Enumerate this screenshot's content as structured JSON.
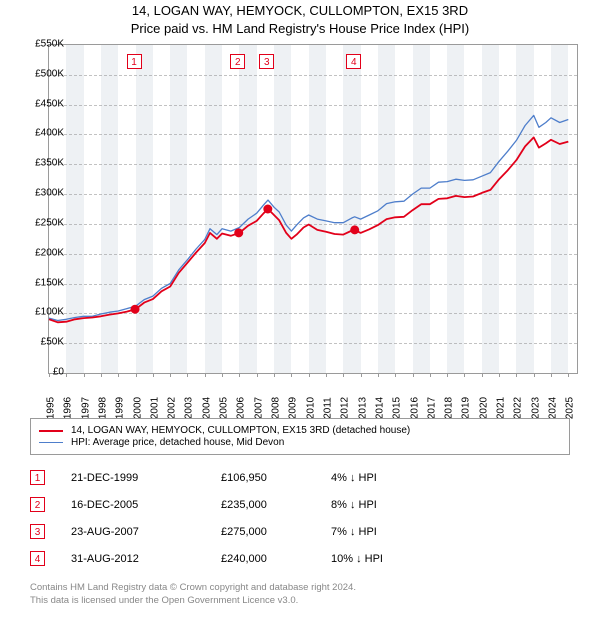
{
  "title_line1": "14, LOGAN WAY, HEMYOCK, CULLOMPTON, EX15 3RD",
  "title_line2": "Price paid vs. HM Land Registry's House Price Index (HPI)",
  "chart": {
    "type": "line",
    "background_color": "#ffffff",
    "band_color": "#eef1f4",
    "grid_color": "#999999",
    "border_color": "#9a9a9a",
    "x_min": 1995.0,
    "x_max": 2025.5,
    "ylim": [
      0,
      550000
    ],
    "ytick_step": 50000,
    "yticks": [
      "£0",
      "£50K",
      "£100K",
      "£150K",
      "£200K",
      "£250K",
      "£300K",
      "£350K",
      "£400K",
      "£450K",
      "£500K",
      "£550K"
    ],
    "xticks": [
      1995,
      1996,
      1997,
      1998,
      1999,
      2000,
      2001,
      2002,
      2003,
      2004,
      2005,
      2006,
      2007,
      2008,
      2009,
      2010,
      2011,
      2012,
      2013,
      2014,
      2015,
      2016,
      2017,
      2018,
      2019,
      2020,
      2021,
      2022,
      2023,
      2024,
      2025
    ],
    "xtick_labels": [
      "1995",
      "1996",
      "1997",
      "1998",
      "1999",
      "2000",
      "2001",
      "2002",
      "2003",
      "2004",
      "2005",
      "2006",
      "2007",
      "2008",
      "2009",
      "2010",
      "2011",
      "2012",
      "2013",
      "2014",
      "2015",
      "2016",
      "2017",
      "2018",
      "2019",
      "2020",
      "2021",
      "2022",
      "2023",
      "2024",
      "2025"
    ],
    "label_fontsize": 10,
    "series": [
      {
        "name": "14, LOGAN WAY, HEMYOCK, CULLOMPTON, EX15 3RD (detached house)",
        "color": "#e2001a",
        "width": 1.8,
        "points": [
          [
            1995.0,
            90000
          ],
          [
            1995.5,
            85000
          ],
          [
            1996.0,
            86000
          ],
          [
            1996.5,
            90000
          ],
          [
            1997.0,
            92000
          ],
          [
            1997.5,
            93000
          ],
          [
            1998.0,
            95000
          ],
          [
            1998.5,
            98000
          ],
          [
            1999.0,
            100000
          ],
          [
            1999.5,
            103000
          ],
          [
            2000.0,
            107000
          ],
          [
            2000.5,
            118000
          ],
          [
            2001.0,
            124000
          ],
          [
            2001.5,
            137000
          ],
          [
            2002.0,
            145000
          ],
          [
            2002.5,
            168000
          ],
          [
            2003.0,
            185000
          ],
          [
            2003.5,
            202000
          ],
          [
            2004.0,
            218000
          ],
          [
            2004.3,
            235000
          ],
          [
            2004.7,
            225000
          ],
          [
            2005.0,
            234000
          ],
          [
            2005.5,
            230000
          ],
          [
            2006.0,
            235000
          ],
          [
            2006.5,
            247000
          ],
          [
            2007.0,
            255000
          ],
          [
            2007.4,
            268000
          ],
          [
            2007.65,
            275000
          ],
          [
            2008.0,
            265000
          ],
          [
            2008.3,
            256000
          ],
          [
            2008.7,
            235000
          ],
          [
            2009.0,
            225000
          ],
          [
            2009.3,
            232000
          ],
          [
            2009.7,
            244000
          ],
          [
            2010.0,
            249000
          ],
          [
            2010.5,
            240000
          ],
          [
            2011.0,
            237000
          ],
          [
            2011.5,
            233000
          ],
          [
            2012.0,
            232000
          ],
          [
            2012.5,
            239000
          ],
          [
            2012.66,
            240000
          ],
          [
            2013.0,
            235000
          ],
          [
            2013.5,
            241000
          ],
          [
            2014.0,
            248000
          ],
          [
            2014.5,
            258000
          ],
          [
            2015.0,
            261000
          ],
          [
            2015.5,
            262000
          ],
          [
            2016.0,
            273000
          ],
          [
            2016.5,
            283000
          ],
          [
            2017.0,
            283000
          ],
          [
            2017.5,
            292000
          ],
          [
            2018.0,
            293000
          ],
          [
            2018.5,
            297000
          ],
          [
            2019.0,
            295000
          ],
          [
            2019.5,
            296000
          ],
          [
            2020.0,
            302000
          ],
          [
            2020.5,
            307000
          ],
          [
            2021.0,
            325000
          ],
          [
            2021.5,
            340000
          ],
          [
            2022.0,
            357000
          ],
          [
            2022.5,
            380000
          ],
          [
            2023.0,
            395000
          ],
          [
            2023.3,
            378000
          ],
          [
            2023.7,
            385000
          ],
          [
            2024.0,
            391000
          ],
          [
            2024.5,
            384000
          ],
          [
            2025.0,
            388000
          ]
        ]
      },
      {
        "name": "HPI: Average price, detached house, Mid Devon",
        "color": "#4e7ecb",
        "width": 1.3,
        "points": [
          [
            1995.0,
            92000
          ],
          [
            1995.5,
            88000
          ],
          [
            1996.0,
            90000
          ],
          [
            1996.5,
            93000
          ],
          [
            1997.0,
            95000
          ],
          [
            1997.5,
            95000
          ],
          [
            1998.0,
            99000
          ],
          [
            1998.5,
            102000
          ],
          [
            1999.0,
            104000
          ],
          [
            1999.5,
            108000
          ],
          [
            2000.0,
            112000
          ],
          [
            2000.5,
            123000
          ],
          [
            2001.0,
            129000
          ],
          [
            2001.5,
            142000
          ],
          [
            2002.0,
            150000
          ],
          [
            2002.5,
            173000
          ],
          [
            2003.0,
            190000
          ],
          [
            2003.5,
            208000
          ],
          [
            2004.0,
            224000
          ],
          [
            2004.3,
            242000
          ],
          [
            2004.7,
            232000
          ],
          [
            2005.0,
            242000
          ],
          [
            2005.5,
            238000
          ],
          [
            2006.0,
            244000
          ],
          [
            2006.5,
            258000
          ],
          [
            2007.0,
            268000
          ],
          [
            2007.4,
            282000
          ],
          [
            2007.65,
            290000
          ],
          [
            2008.0,
            278000
          ],
          [
            2008.3,
            270000
          ],
          [
            2008.7,
            248000
          ],
          [
            2009.0,
            238000
          ],
          [
            2009.3,
            248000
          ],
          [
            2009.7,
            260000
          ],
          [
            2010.0,
            265000
          ],
          [
            2010.5,
            258000
          ],
          [
            2011.0,
            255000
          ],
          [
            2011.5,
            252000
          ],
          [
            2012.0,
            252000
          ],
          [
            2012.5,
            260000
          ],
          [
            2012.66,
            262000
          ],
          [
            2013.0,
            258000
          ],
          [
            2013.5,
            265000
          ],
          [
            2014.0,
            272000
          ],
          [
            2014.5,
            284000
          ],
          [
            2015.0,
            287000
          ],
          [
            2015.5,
            288000
          ],
          [
            2016.0,
            300000
          ],
          [
            2016.5,
            310000
          ],
          [
            2017.0,
            310000
          ],
          [
            2017.5,
            320000
          ],
          [
            2018.0,
            321000
          ],
          [
            2018.5,
            325000
          ],
          [
            2019.0,
            323000
          ],
          [
            2019.5,
            324000
          ],
          [
            2020.0,
            330000
          ],
          [
            2020.5,
            336000
          ],
          [
            2021.0,
            355000
          ],
          [
            2021.5,
            372000
          ],
          [
            2022.0,
            390000
          ],
          [
            2022.5,
            415000
          ],
          [
            2023.0,
            432000
          ],
          [
            2023.3,
            412000
          ],
          [
            2023.7,
            420000
          ],
          [
            2024.0,
            428000
          ],
          [
            2024.5,
            420000
          ],
          [
            2025.0,
            425000
          ]
        ]
      }
    ],
    "sale_markers": [
      {
        "n": "1",
        "x": 1999.97,
        "y": 106950
      },
      {
        "n": "2",
        "x": 2005.96,
        "y": 235000
      },
      {
        "n": "3",
        "x": 2007.64,
        "y": 275000
      },
      {
        "n": "4",
        "x": 2012.66,
        "y": 240000
      }
    ]
  },
  "legend": {
    "items": [
      {
        "color": "#e2001a",
        "width": 2.5,
        "label": "14, LOGAN WAY, HEMYOCK, CULLOMPTON, EX15 3RD (detached house)"
      },
      {
        "color": "#4e7ecb",
        "width": 1.5,
        "label": "HPI: Average price, detached house, Mid Devon"
      }
    ]
  },
  "sales": [
    {
      "n": "1",
      "date": "21-DEC-1999",
      "price": "£106,950",
      "diff": "4% ↓ HPI"
    },
    {
      "n": "2",
      "date": "16-DEC-2005",
      "price": "£235,000",
      "diff": "8% ↓ HPI"
    },
    {
      "n": "3",
      "date": "23-AUG-2007",
      "price": "£275,000",
      "diff": "7% ↓ HPI"
    },
    {
      "n": "4",
      "date": "31-AUG-2012",
      "price": "£240,000",
      "diff": "10% ↓ HPI"
    }
  ],
  "disclaimer_l1": "Contains HM Land Registry data © Crown copyright and database right 2024.",
  "disclaimer_l2": "This data is licensed under the Open Government Licence v3.0."
}
